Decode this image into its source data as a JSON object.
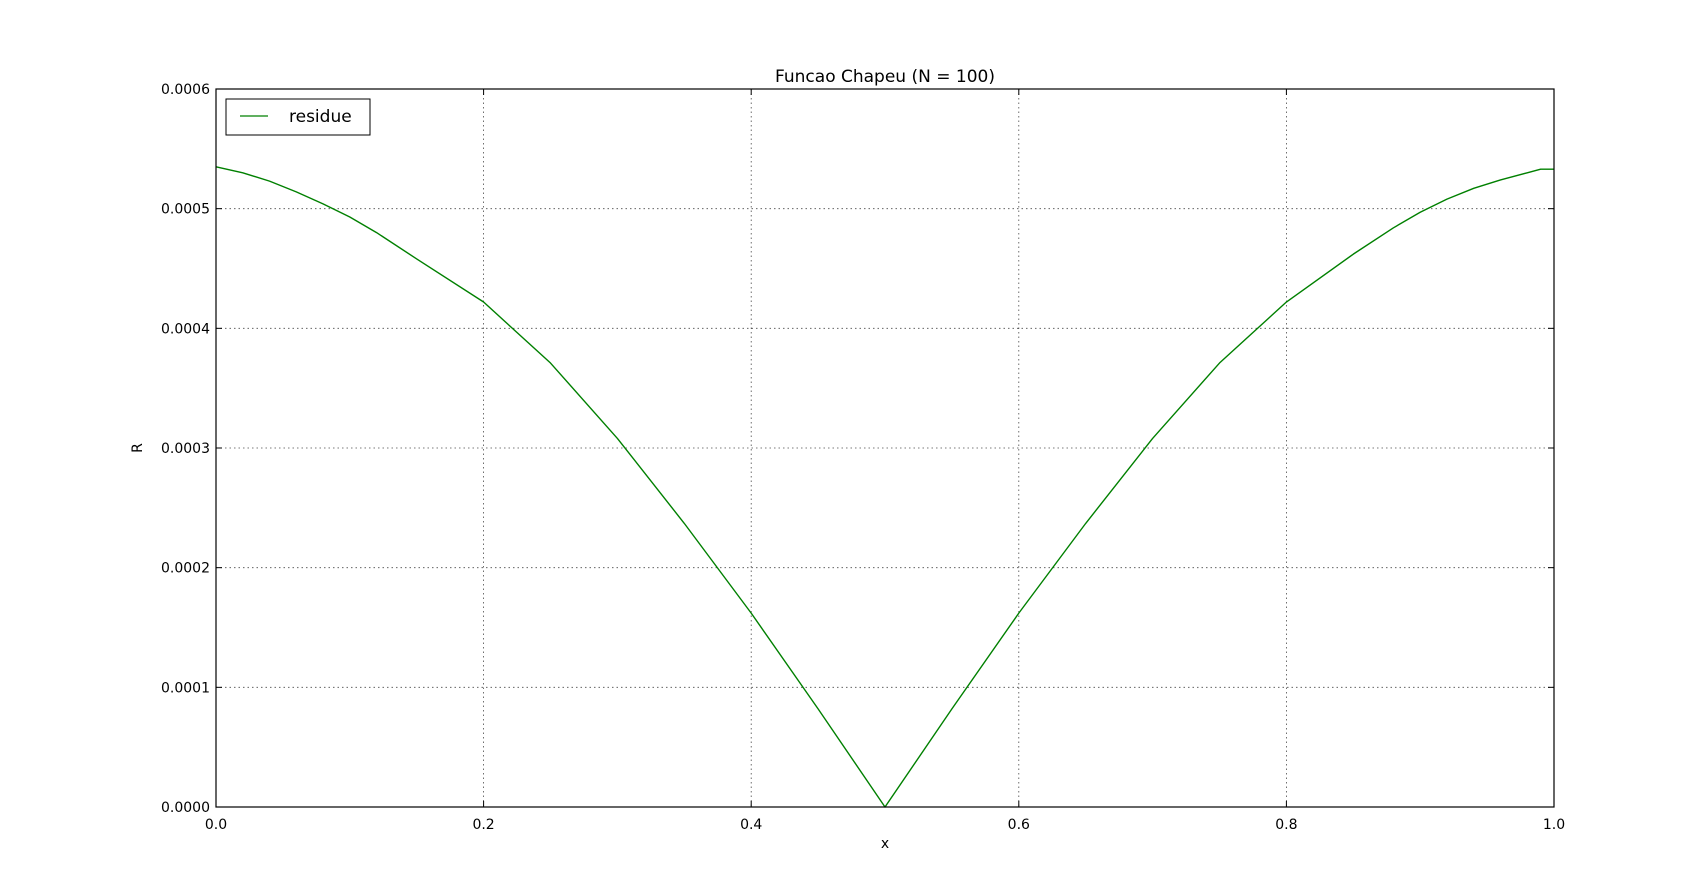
{
  "chart_data": {
    "type": "line",
    "title": "Funcao Chapeu (N = 100)",
    "xlabel": "x",
    "ylabel": "R",
    "xlim": [
      0.0,
      1.0
    ],
    "ylim": [
      0.0,
      0.0006
    ],
    "xticks": [
      0.0,
      0.2,
      0.4,
      0.6,
      0.8,
      1.0
    ],
    "xtick_labels": [
      "0.0",
      "0.2",
      "0.4",
      "0.6",
      "0.8",
      "1.0"
    ],
    "yticks": [
      0.0,
      0.0001,
      0.0002,
      0.0003,
      0.0004,
      0.0005,
      0.0006
    ],
    "ytick_labels": [
      "0.0000",
      "0.0001",
      "0.0002",
      "0.0003",
      "0.0004",
      "0.0005",
      "0.0006"
    ],
    "grid": true,
    "legend_position": "top-left",
    "series": [
      {
        "name": "residue",
        "color": "#008000",
        "x": [
          0.0,
          0.02,
          0.04,
          0.06,
          0.08,
          0.1,
          0.12,
          0.15,
          0.2,
          0.25,
          0.3,
          0.35,
          0.4,
          0.45,
          0.5,
          0.55,
          0.6,
          0.65,
          0.7,
          0.75,
          0.8,
          0.85,
          0.88,
          0.9,
          0.92,
          0.94,
          0.96,
          0.98,
          0.99,
          1.0
        ],
        "y": [
          0.000535,
          0.00053,
          0.000523,
          0.000514,
          0.000504,
          0.000493,
          0.00048,
          0.000458,
          0.000422,
          0.000371,
          0.000308,
          0.000237,
          0.000162,
          8.2e-05,
          0.0,
          8.2e-05,
          0.000162,
          0.000237,
          0.000308,
          0.000371,
          0.000422,
          0.000462,
          0.000484,
          0.000497,
          0.000508,
          0.000517,
          0.000524,
          0.00053,
          0.000533,
          0.000533
        ]
      }
    ]
  }
}
